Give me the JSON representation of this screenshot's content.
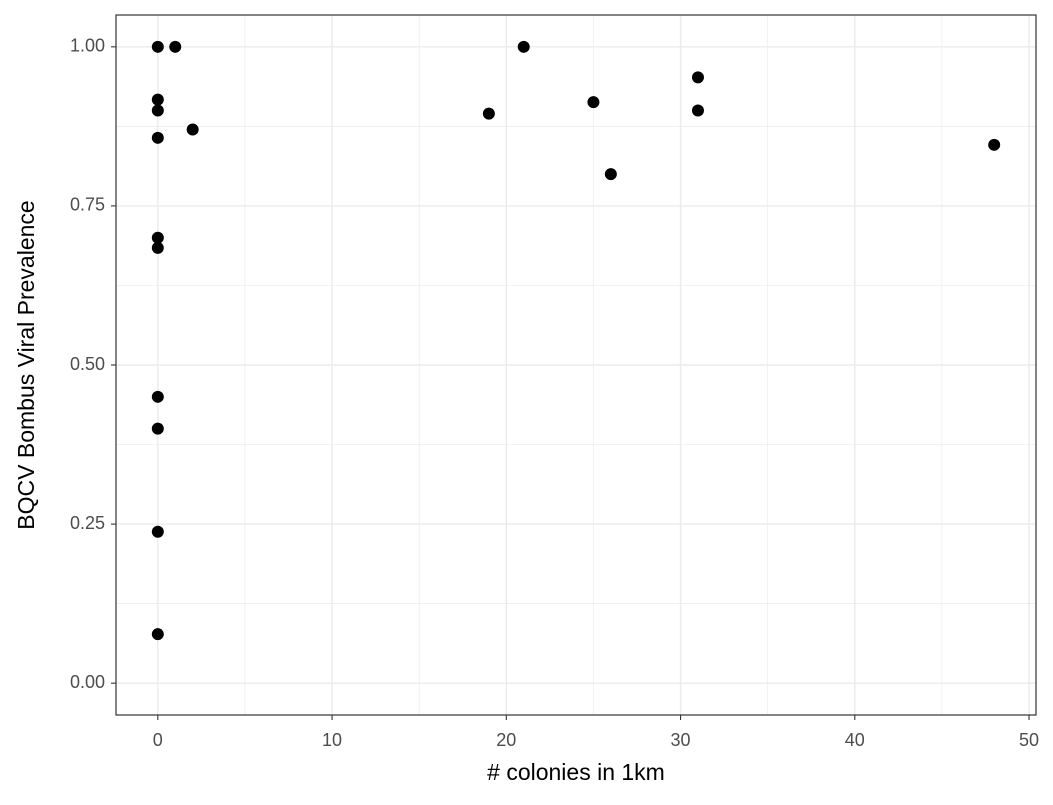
{
  "chart_data": {
    "type": "scatter",
    "x_label": "# colonies in 1km",
    "y_label": "BQCV Bombus Viral Prevalence",
    "x": [
      0,
      1,
      0,
      0,
      2,
      0,
      0,
      0,
      0,
      0,
      0,
      0,
      19,
      21,
      25,
      26,
      31,
      31,
      48
    ],
    "values": [
      1.0,
      1.0,
      0.917,
      0.9,
      0.87,
      0.857,
      0.7,
      0.684,
      0.45,
      0.4,
      0.238,
      0.077,
      0.895,
      1.0,
      0.913,
      0.8,
      0.952,
      0.9,
      0.846
    ],
    "color": "#000000",
    "xlim": [
      -2.4,
      50.4
    ],
    "ylim": [
      -0.05,
      1.05
    ],
    "xticks": [
      0,
      10,
      20,
      30,
      40,
      50
    ],
    "yticks": [
      {
        "value": 0,
        "label": "0.00"
      },
      {
        "value": 0.25,
        "label": "0.25"
      },
      {
        "value": 0.5,
        "label": "0.50"
      },
      {
        "value": 0.75,
        "label": "0.75"
      },
      {
        "value": 1,
        "label": "1.00"
      }
    ],
    "grid": true
  }
}
